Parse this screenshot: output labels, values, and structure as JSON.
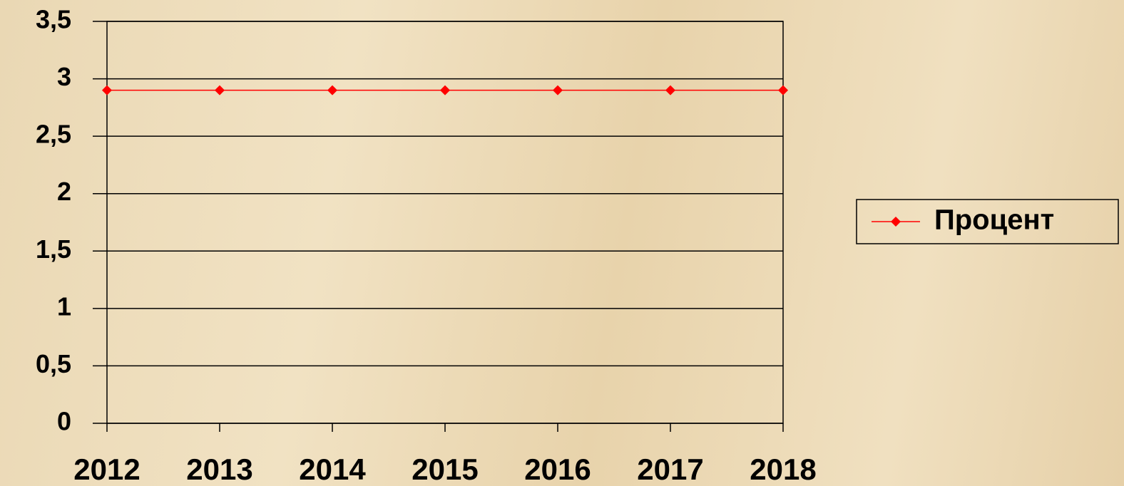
{
  "chart_data": {
    "type": "line",
    "categories": [
      "2012",
      "2013",
      "2014",
      "2015",
      "2016",
      "2017",
      "2018"
    ],
    "series": [
      {
        "name": "Процент",
        "color": "#ff0000",
        "values": [
          2.9,
          2.9,
          2.9,
          2.9,
          2.9,
          2.9,
          2.9
        ]
      }
    ],
    "ylim": [
      0,
      3.5
    ],
    "yticks": [
      0,
      {
        "value": 0.5,
        "label": "0,5"
      },
      1,
      {
        "value": 1.5,
        "label": "1,5"
      },
      2,
      {
        "value": 2.5,
        "label": "2,5"
      },
      3,
      {
        "value": 3.5,
        "label": "3,5"
      }
    ],
    "grid": true,
    "legend": "right"
  }
}
